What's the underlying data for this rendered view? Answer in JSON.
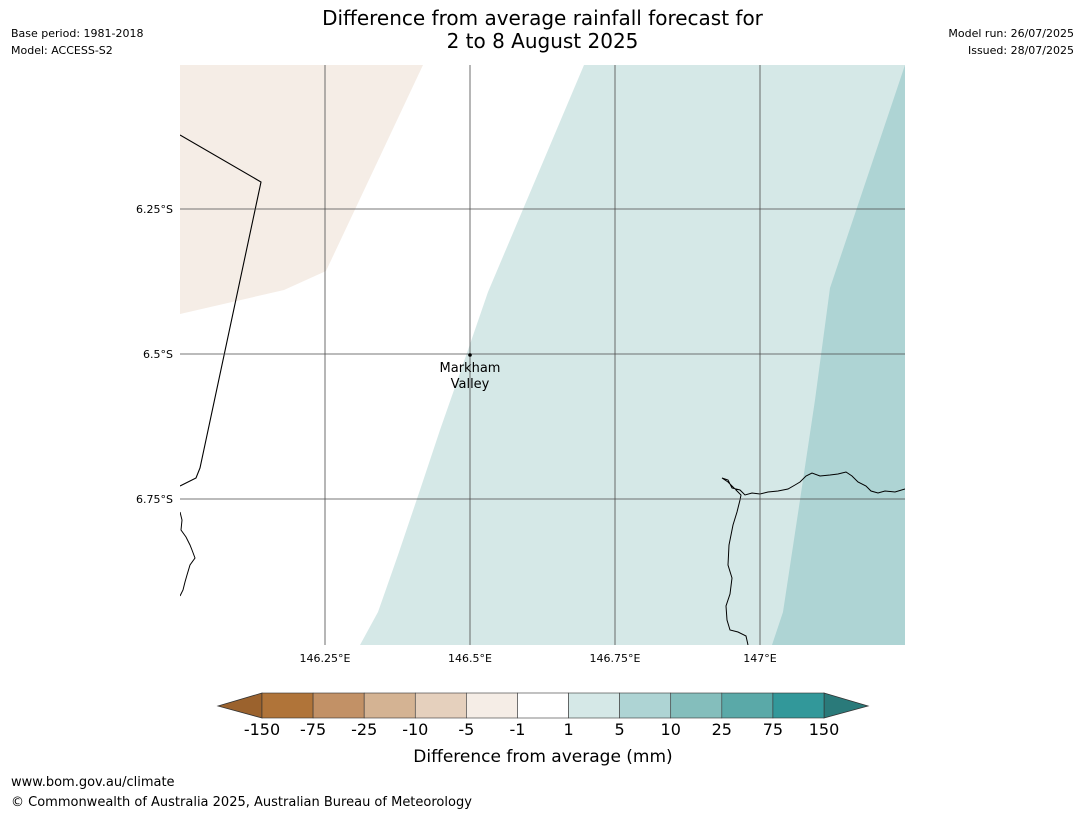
{
  "title": {
    "line1": "Difference from average rainfall forecast for",
    "line2": "2 to 8 August 2025"
  },
  "meta_left": {
    "base_period": "Base period: 1981-2018",
    "model": "Model: ACCESS-S2"
  },
  "meta_right": {
    "model_run": "Model run: 26/07/2025",
    "issued": "Issued: 28/07/2025"
  },
  "map": {
    "lat_labels": [
      "6.25°S",
      "6.5°S",
      "6.75°S"
    ],
    "lon_labels": [
      "146.25°E",
      "146.5°E",
      "146.75°E",
      "147°E"
    ],
    "place": {
      "name_line1": "Markham",
      "name_line2": "Valley"
    },
    "colors": {
      "band_-10_-1": "#f5ede6",
      "band_1_5": "#d5e8e7",
      "band_5_10": "#aed4d4",
      "gridline": "#4a4a4a",
      "coastline": "#000000"
    }
  },
  "legend": {
    "title": "Difference from average (mm)",
    "ticks": [
      "-150",
      "-75",
      "-25",
      "-10",
      "-5",
      "-1",
      "1",
      "5",
      "10",
      "25",
      "75",
      "150"
    ],
    "colors": [
      "#9b622d",
      "#b07439",
      "#c29166",
      "#d4b393",
      "#e5d0bd",
      "#f5ede6",
      "#ffffff",
      "#d5e8e7",
      "#aed4d4",
      "#84bebc",
      "#5aa9a8",
      "#32989a",
      "#2a7a7a"
    ]
  },
  "footer": {
    "url": "www.bom.gov.au/climate",
    "copyright": "© Commonwealth of Australia 2025, Australian Bureau of Meteorology"
  }
}
